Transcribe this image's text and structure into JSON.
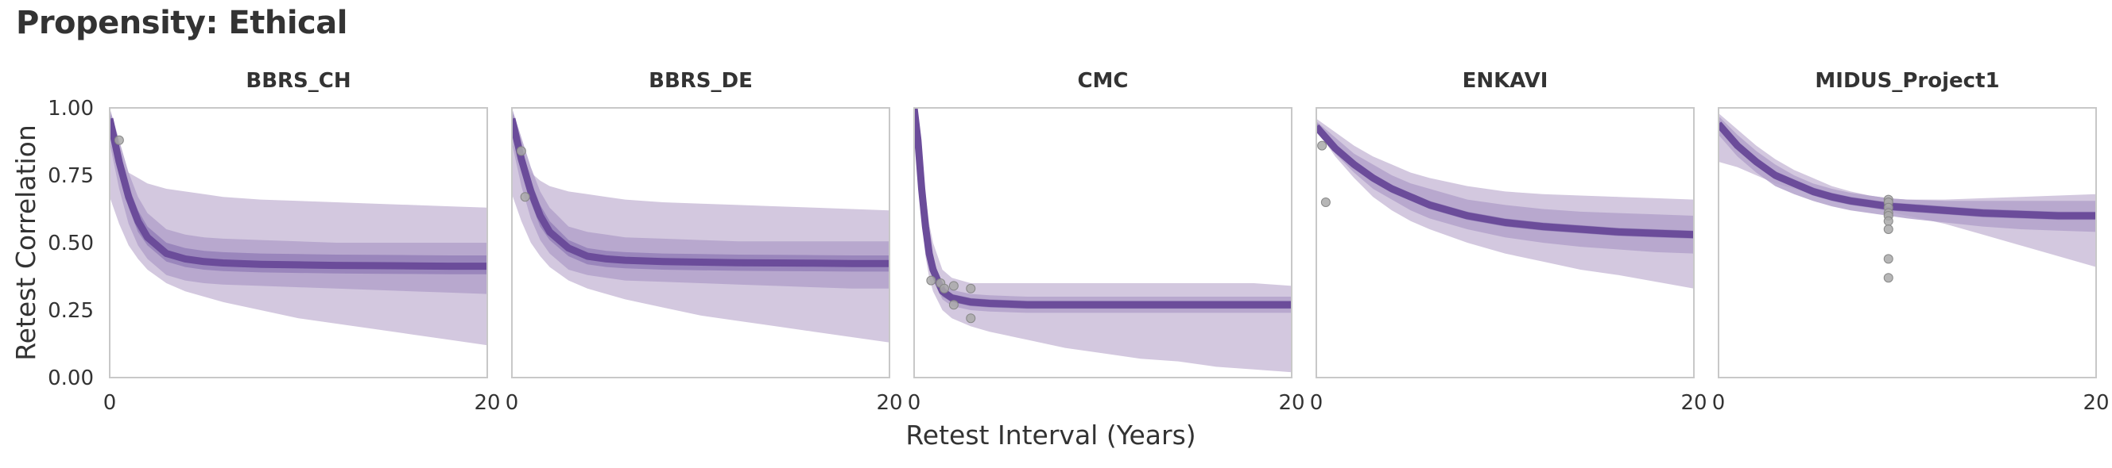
{
  "figure": {
    "title": "Propensity: Ethical",
    "xlabel": "Retest Interval (Years)",
    "ylabel": "Retest Correlation"
  },
  "colors": {
    "band_light": "#d3c8df",
    "band_mid": "#b3a2cb",
    "band_dark": "#9480b8",
    "line": "#6b4c9a",
    "point": "#a9a9a9",
    "axes_edge": "#c8c8c8",
    "text": "#333333"
  },
  "chart_data": [
    {
      "type": "line",
      "title": "BBRS_CH",
      "xlim": [
        0,
        20
      ],
      "ylim": [
        0,
        1
      ],
      "xticks": [
        0,
        20
      ],
      "yticks": [
        "0.00",
        "0.25",
        "0.50",
        "0.75",
        "1.00"
      ],
      "x": [
        0,
        0.5,
        1,
        1.5,
        2,
        3,
        4,
        5,
        6,
        8,
        10,
        12,
        14,
        16,
        18,
        20
      ],
      "mean": [
        0.96,
        0.8,
        0.67,
        0.58,
        0.52,
        0.46,
        0.44,
        0.43,
        0.425,
        0.42,
        0.418,
        0.416,
        0.415,
        0.414,
        0.413,
        0.413
      ],
      "bands": [
        {
          "name": "outer",
          "lower": [
            0.67,
            0.57,
            0.49,
            0.44,
            0.4,
            0.35,
            0.32,
            0.3,
            0.28,
            0.25,
            0.22,
            0.2,
            0.18,
            0.16,
            0.14,
            0.12
          ],
          "upper": [
            0.87,
            0.8,
            0.76,
            0.74,
            0.72,
            0.7,
            0.69,
            0.68,
            0.67,
            0.66,
            0.655,
            0.65,
            0.645,
            0.64,
            0.635,
            0.63
          ]
        },
        {
          "name": "mid",
          "lower": [
            0.87,
            0.7,
            0.57,
            0.49,
            0.44,
            0.38,
            0.36,
            0.35,
            0.345,
            0.34,
            0.335,
            0.33,
            0.325,
            0.32,
            0.315,
            0.31
          ],
          "upper": [
            1.0,
            0.88,
            0.76,
            0.67,
            0.61,
            0.55,
            0.53,
            0.52,
            0.515,
            0.51,
            0.505,
            0.5,
            0.5,
            0.5,
            0.5,
            0.5
          ]
        },
        {
          "name": "inner",
          "lower": [
            0.92,
            0.76,
            0.63,
            0.54,
            0.49,
            0.43,
            0.41,
            0.4,
            0.395,
            0.39,
            0.388,
            0.386,
            0.385,
            0.384,
            0.383,
            0.383
          ],
          "upper": [
            0.99,
            0.84,
            0.71,
            0.62,
            0.56,
            0.5,
            0.48,
            0.47,
            0.465,
            0.46,
            0.458,
            0.456,
            0.455,
            0.454,
            0.453,
            0.453
          ]
        }
      ],
      "points": [
        [
          0.5,
          0.88
        ]
      ]
    },
    {
      "type": "line",
      "title": "BBRS_DE",
      "xlim": [
        0,
        20
      ],
      "ylim": [
        0,
        1
      ],
      "xticks": [
        0,
        20
      ],
      "x": [
        0,
        0.5,
        1,
        1.5,
        2,
        3,
        4,
        5,
        6,
        8,
        10,
        12,
        14,
        16,
        18,
        20
      ],
      "mean": [
        0.96,
        0.81,
        0.69,
        0.6,
        0.54,
        0.48,
        0.45,
        0.44,
        0.435,
        0.43,
        0.428,
        0.426,
        0.425,
        0.424,
        0.423,
        0.423
      ],
      "bands": [
        {
          "name": "outer",
          "lower": [
            0.68,
            0.58,
            0.5,
            0.45,
            0.41,
            0.36,
            0.33,
            0.31,
            0.29,
            0.26,
            0.23,
            0.21,
            0.19,
            0.17,
            0.15,
            0.13
          ],
          "upper": [
            0.87,
            0.8,
            0.76,
            0.73,
            0.71,
            0.69,
            0.68,
            0.67,
            0.66,
            0.65,
            0.645,
            0.64,
            0.635,
            0.63,
            0.625,
            0.62
          ]
        },
        {
          "name": "mid",
          "lower": [
            0.87,
            0.71,
            0.59,
            0.51,
            0.46,
            0.4,
            0.38,
            0.37,
            0.36,
            0.355,
            0.35,
            0.345,
            0.34,
            0.335,
            0.33,
            0.33
          ],
          "upper": [
            1.0,
            0.89,
            0.78,
            0.69,
            0.63,
            0.56,
            0.54,
            0.53,
            0.52,
            0.515,
            0.51,
            0.505,
            0.505,
            0.505,
            0.505,
            0.505
          ]
        },
        {
          "name": "inner",
          "lower": [
            0.92,
            0.77,
            0.65,
            0.56,
            0.51,
            0.45,
            0.42,
            0.41,
            0.405,
            0.4,
            0.398,
            0.396,
            0.395,
            0.394,
            0.393,
            0.393
          ],
          "upper": [
            0.99,
            0.85,
            0.73,
            0.64,
            0.58,
            0.51,
            0.48,
            0.47,
            0.465,
            0.46,
            0.458,
            0.456,
            0.455,
            0.454,
            0.453,
            0.453
          ]
        }
      ],
      "points": [
        [
          0.5,
          0.84
        ],
        [
          0.7,
          0.67
        ]
      ]
    },
    {
      "type": "line",
      "title": "CMC",
      "xlim": [
        0,
        20
      ],
      "ylim": [
        0,
        1
      ],
      "xticks": [
        0,
        20
      ],
      "x": [
        0,
        0.2,
        0.4,
        0.6,
        0.8,
        1,
        1.5,
        2,
        3,
        4,
        6,
        8,
        10,
        12,
        14,
        16,
        18,
        20
      ],
      "mean": [
        1.0,
        0.88,
        0.7,
        0.56,
        0.46,
        0.4,
        0.32,
        0.295,
        0.28,
        0.275,
        0.27,
        0.27,
        0.27,
        0.27,
        0.27,
        0.27,
        0.27,
        0.27
      ],
      "bands": [
        {
          "name": "outer",
          "lower": [
            0.9,
            0.75,
            0.58,
            0.45,
            0.37,
            0.32,
            0.25,
            0.22,
            0.19,
            0.17,
            0.14,
            0.11,
            0.09,
            0.07,
            0.06,
            0.04,
            0.03,
            0.02
          ],
          "upper": [
            1.0,
            0.97,
            0.82,
            0.68,
            0.57,
            0.5,
            0.4,
            0.37,
            0.35,
            0.35,
            0.35,
            0.35,
            0.35,
            0.35,
            0.35,
            0.35,
            0.35,
            0.34
          ]
        },
        {
          "name": "mid",
          "lower": [
            0.95,
            0.82,
            0.64,
            0.51,
            0.42,
            0.36,
            0.29,
            0.265,
            0.25,
            0.245,
            0.24,
            0.24,
            0.24,
            0.24,
            0.24,
            0.24,
            0.24,
            0.24
          ],
          "upper": [
            1.0,
            0.94,
            0.76,
            0.61,
            0.5,
            0.44,
            0.35,
            0.325,
            0.31,
            0.305,
            0.3,
            0.3,
            0.3,
            0.3,
            0.3,
            0.3,
            0.3,
            0.3
          ]
        },
        {
          "name": "inner",
          "lower": [
            0.98,
            0.85,
            0.67,
            0.53,
            0.44,
            0.38,
            0.3,
            0.28,
            0.265,
            0.26,
            0.255,
            0.255,
            0.255,
            0.255,
            0.255,
            0.255,
            0.255,
            0.255
          ],
          "upper": [
            1.0,
            0.91,
            0.73,
            0.59,
            0.48,
            0.42,
            0.34,
            0.31,
            0.295,
            0.29,
            0.285,
            0.285,
            0.285,
            0.285,
            0.285,
            0.285,
            0.285,
            0.285
          ]
        }
      ],
      "points": [
        [
          0.9,
          0.36
        ],
        [
          1.4,
          0.35
        ],
        [
          1.6,
          0.33
        ],
        [
          2.1,
          0.34
        ],
        [
          2.1,
          0.27
        ],
        [
          3.0,
          0.33
        ],
        [
          3.0,
          0.22
        ]
      ]
    },
    {
      "type": "line",
      "title": "ENKAVI",
      "xlim": [
        0,
        20
      ],
      "ylim": [
        0,
        1
      ],
      "xticks": [
        0,
        20
      ],
      "x": [
        0,
        1,
        2,
        3,
        4,
        5,
        6,
        8,
        10,
        12,
        14,
        16,
        18,
        20
      ],
      "mean": [
        0.93,
        0.85,
        0.79,
        0.74,
        0.7,
        0.67,
        0.64,
        0.6,
        0.575,
        0.56,
        0.55,
        0.54,
        0.535,
        0.53
      ],
      "bands": [
        {
          "name": "outer",
          "lower": [
            0.92,
            0.82,
            0.74,
            0.67,
            0.62,
            0.58,
            0.55,
            0.5,
            0.46,
            0.43,
            0.4,
            0.38,
            0.355,
            0.33
          ],
          "upper": [
            0.96,
            0.91,
            0.86,
            0.82,
            0.79,
            0.76,
            0.74,
            0.71,
            0.69,
            0.68,
            0.675,
            0.67,
            0.665,
            0.66
          ]
        },
        {
          "name": "mid",
          "lower": [
            0.92,
            0.83,
            0.76,
            0.7,
            0.66,
            0.62,
            0.59,
            0.55,
            0.52,
            0.5,
            0.485,
            0.475,
            0.465,
            0.46
          ],
          "upper": [
            0.95,
            0.89,
            0.83,
            0.79,
            0.75,
            0.72,
            0.7,
            0.66,
            0.64,
            0.625,
            0.615,
            0.61,
            0.605,
            0.6
          ]
        },
        {
          "name": "inner",
          "lower": [
            0.925,
            0.84,
            0.775,
            0.725,
            0.685,
            0.655,
            0.625,
            0.585,
            0.56,
            0.545,
            0.535,
            0.525,
            0.52,
            0.515
          ],
          "upper": [
            0.945,
            0.865,
            0.805,
            0.755,
            0.715,
            0.685,
            0.655,
            0.615,
            0.59,
            0.575,
            0.565,
            0.555,
            0.55,
            0.545
          ]
        }
      ],
      "points": [
        [
          0.3,
          0.86
        ],
        [
          0.5,
          0.65
        ]
      ]
    },
    {
      "type": "line",
      "title": "MIDUS_Project1",
      "xlim": [
        0,
        20
      ],
      "ylim": [
        0,
        1
      ],
      "xticks": [
        0,
        20
      ],
      "x": [
        0,
        1,
        2,
        3,
        4,
        5,
        6,
        7,
        8,
        9,
        10,
        12,
        14,
        16,
        18,
        20
      ],
      "mean": [
        0.94,
        0.86,
        0.8,
        0.75,
        0.72,
        0.69,
        0.67,
        0.655,
        0.645,
        0.635,
        0.63,
        0.62,
        0.61,
        0.605,
        0.6,
        0.6
      ],
      "bands": [
        {
          "name": "outer",
          "lower": [
            0.8,
            0.78,
            0.75,
            0.72,
            0.7,
            0.68,
            0.66,
            0.645,
            0.63,
            0.615,
            0.6,
            0.57,
            0.53,
            0.49,
            0.45,
            0.41
          ],
          "upper": [
            0.98,
            0.92,
            0.86,
            0.81,
            0.77,
            0.74,
            0.71,
            0.69,
            0.675,
            0.665,
            0.66,
            0.66,
            0.665,
            0.67,
            0.675,
            0.68
          ]
        },
        {
          "name": "mid",
          "lower": [
            0.9,
            0.82,
            0.76,
            0.71,
            0.68,
            0.655,
            0.635,
            0.62,
            0.61,
            0.6,
            0.59,
            0.575,
            0.56,
            0.55,
            0.545,
            0.54
          ],
          "upper": [
            0.97,
            0.9,
            0.84,
            0.79,
            0.75,
            0.72,
            0.7,
            0.685,
            0.675,
            0.665,
            0.66,
            0.655,
            0.655,
            0.655,
            0.655,
            0.655
          ]
        },
        {
          "name": "inner",
          "lower": [
            0.925,
            0.845,
            0.785,
            0.735,
            0.705,
            0.675,
            0.655,
            0.64,
            0.63,
            0.62,
            0.615,
            0.605,
            0.595,
            0.59,
            0.585,
            0.585
          ],
          "upper": [
            0.955,
            0.875,
            0.815,
            0.765,
            0.735,
            0.705,
            0.685,
            0.67,
            0.66,
            0.65,
            0.645,
            0.635,
            0.625,
            0.62,
            0.615,
            0.615
          ]
        }
      ],
      "points": [
        [
          9,
          0.66
        ],
        [
          9,
          0.65
        ],
        [
          9,
          0.63
        ],
        [
          9,
          0.61
        ],
        [
          9,
          0.6
        ],
        [
          9,
          0.58
        ],
        [
          9,
          0.55
        ],
        [
          9,
          0.44
        ],
        [
          9,
          0.37
        ]
      ]
    }
  ]
}
